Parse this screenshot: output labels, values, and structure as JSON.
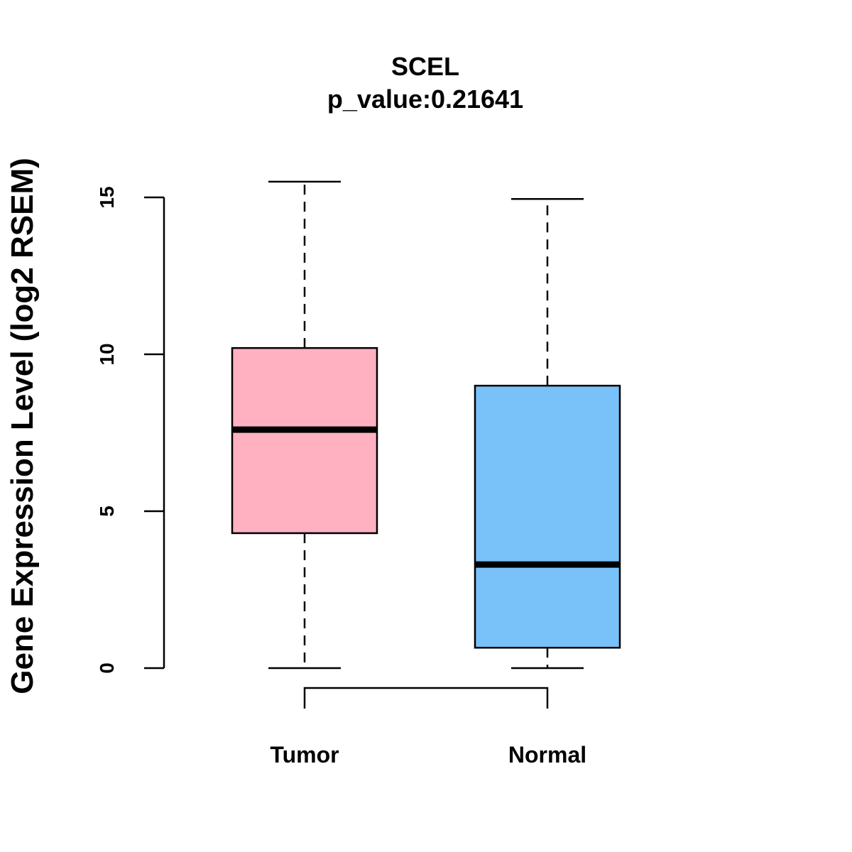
{
  "chart_data": {
    "type": "boxplot",
    "title": "SCEL",
    "subtitle": "p_value:0.21641",
    "xlabel": "",
    "ylabel": "Gene Expression Level (log2 RSEM)",
    "ylim": [
      0,
      15.5
    ],
    "yticks": [
      "0",
      "5",
      "10",
      "15"
    ],
    "categories": [
      "Tumor",
      "Normal"
    ],
    "boxes": [
      {
        "name": "Tumor",
        "whisker_low": 0,
        "q1": 4.3,
        "median": 7.6,
        "q3": 10.2,
        "whisker_high": 15.5,
        "color": "#FFB0C1"
      },
      {
        "name": "Normal",
        "whisker_low": 0,
        "q1": 0.65,
        "median": 3.3,
        "q3": 9.0,
        "whisker_high": 14.95,
        "color": "#78C1F9"
      }
    ],
    "comparison_bracket": [
      "Tumor",
      "Normal"
    ],
    "grid": false,
    "legend": "none"
  }
}
